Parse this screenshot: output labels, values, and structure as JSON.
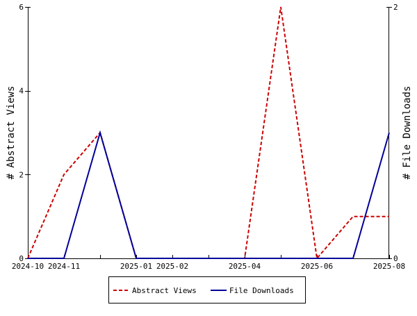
{
  "chart_data": {
    "type": "line",
    "x_tick_labels": [
      "2024-10",
      "2024-11",
      "2025-01",
      "2025-02",
      "2025-04",
      "2025-06",
      "2025-08"
    ],
    "x_tick_values": [
      0,
      1,
      3,
      4,
      6,
      8,
      10
    ],
    "x": [
      "2024-10",
      "2024-11",
      "2024-12",
      "2025-01",
      "2025-02",
      "2025-03",
      "2025-04",
      "2025-05",
      "2025-06",
      "2025-07",
      "2025-08"
    ],
    "series": [
      {
        "name": "Abstract Views",
        "axis": "left",
        "color": "#cc0000",
        "dash": "dashed",
        "values": [
          0,
          2,
          3,
          0,
          0,
          0,
          0,
          6,
          0,
          1,
          1
        ]
      },
      {
        "name": "File Downloads",
        "axis": "right",
        "color": "#000099",
        "dash": "solid",
        "values": [
          0,
          0,
          1,
          0,
          0,
          0,
          0,
          0,
          0,
          0,
          1
        ]
      }
    ],
    "ylabel_left": "# Abstract Views",
    "ylabel_right": "# File Downloads",
    "ylim_left": [
      0,
      6
    ],
    "ylim_right": [
      0,
      2
    ],
    "y_ticks_left": [
      0,
      2,
      4,
      6
    ],
    "y_ticks_right": [
      0,
      2
    ],
    "grid": false,
    "legend_position": "bottom-center"
  }
}
